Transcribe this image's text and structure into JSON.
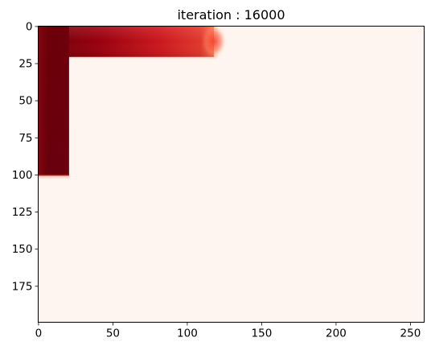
{
  "chart_data": {
    "type": "heatmap",
    "title": "iteration : 16000",
    "xlabel": "",
    "ylabel": "",
    "xlim": [
      -0.5,
      259.5
    ],
    "ylim": [
      199.5,
      -0.5
    ],
    "y_axis_inverted": true,
    "grid": false,
    "legend": "none",
    "colormap": "Reds",
    "x_ticks": [
      0,
      50,
      100,
      150,
      200,
      250
    ],
    "y_ticks": [
      0,
      25,
      50,
      75,
      100,
      125,
      150,
      175
    ],
    "x_tick_labels": [
      "0",
      "50",
      "100",
      "150",
      "200",
      "250"
    ],
    "y_tick_labels": [
      "0",
      "25",
      "50",
      "75",
      "100",
      "125",
      "150",
      "175"
    ],
    "background_color": "#fff5f0",
    "regions": [
      {
        "name": "horizontal-band",
        "x_range": [
          0,
          120
        ],
        "y_range": [
          0,
          20
        ],
        "intensity_start": 0.95,
        "intensity_end": 0.55
      },
      {
        "name": "vertical-band",
        "x_range": [
          0,
          20
        ],
        "y_range": [
          0,
          100
        ],
        "intensity_start": 0.95,
        "intensity_end": 0.98
      }
    ]
  }
}
